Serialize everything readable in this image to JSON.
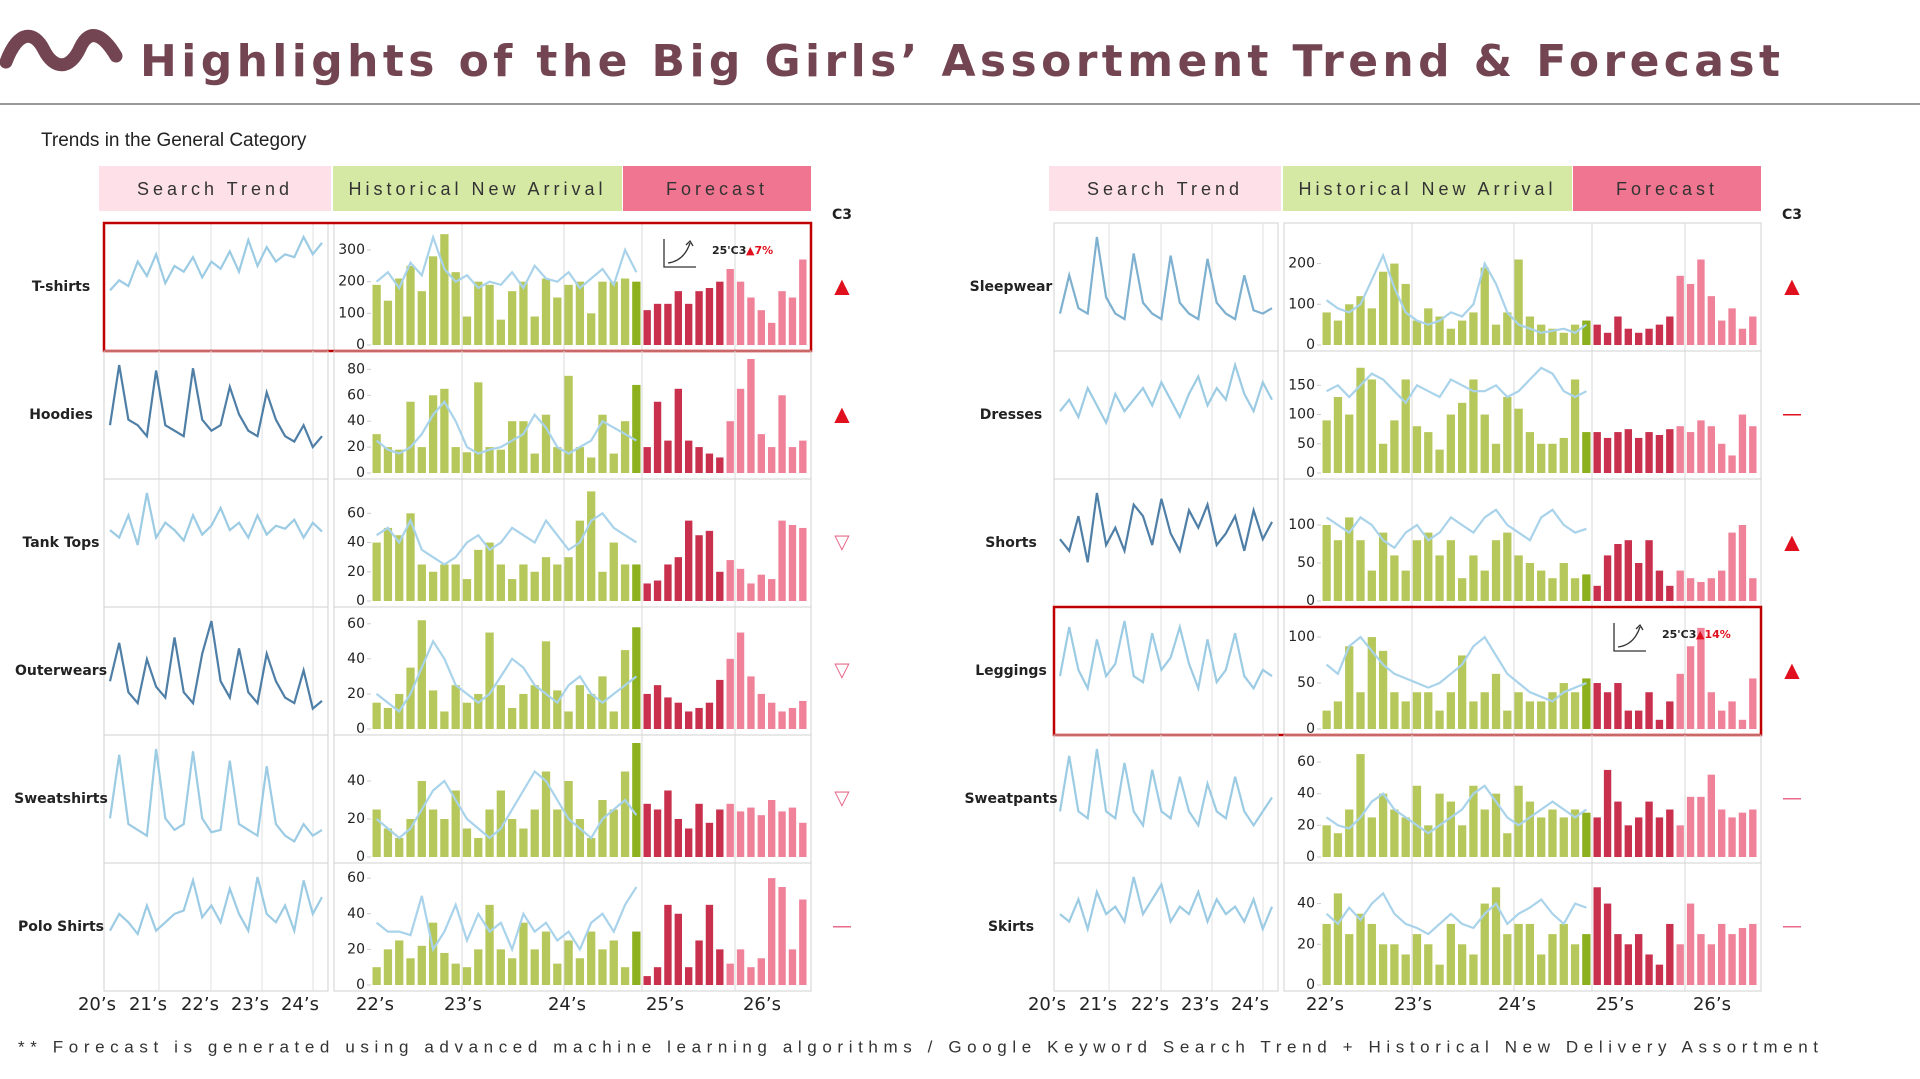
{
  "header": {
    "title": "Highlights of the Big Girls’ Assortment Trend & Forecast",
    "subtitle": "Trends in the General Category"
  },
  "column_headers": {
    "search": "Search Trend",
    "history": "Historical New Arrival",
    "forecast": "Forecast",
    "c3": "C3"
  },
  "x_labels": {
    "search": [
      "20’s",
      "21’s",
      "22’s",
      "23’s",
      "24’s"
    ],
    "history": [
      "22’s",
      "23’s",
      "24’s"
    ],
    "forecast": [
      "25’s",
      "26’s"
    ]
  },
  "footnote": "** Forecast is generated using advanced machine learning algorithms / Google Keyword Search Trend + Historical New Delivery Assortment",
  "colors": {
    "history": "#b6c85c",
    "history_latest": "#8db01e",
    "history_line": "#a9d3ea",
    "forecast_25": "#c8304d",
    "forecast_26": "#ef8199",
    "highlight": "#c00000"
  },
  "chart_data": [
    {
      "type": "panel",
      "title": "T-shirts",
      "search": {
        "color": "#9ccbe4",
        "values": [
          35,
          42,
          38,
          55,
          45,
          60,
          40,
          52,
          48,
          58,
          44,
          55,
          50,
          62,
          48,
          70,
          52,
          65,
          55,
          60,
          58,
          72,
          60,
          68
        ]
      },
      "ylim": [
        0,
        360
      ],
      "yticks": [
        0,
        100,
        200,
        300
      ],
      "history": [
        190,
        140,
        210,
        250,
        170,
        280,
        350,
        230,
        90,
        200,
        190,
        80,
        170,
        200,
        90,
        210,
        150,
        190,
        200,
        100,
        200,
        200,
        210,
        200
      ],
      "history_line": [
        200,
        230,
        180,
        260,
        220,
        340,
        240,
        200,
        220,
        180,
        200,
        190,
        230,
        180,
        250,
        210,
        200,
        230,
        180,
        210,
        240,
        190,
        300,
        230
      ],
      "forecast_25": [
        110,
        130,
        130,
        170,
        130,
        170,
        180,
        200
      ],
      "forecast_26": [
        240,
        200,
        150,
        110,
        70,
        170,
        150,
        270
      ],
      "c3": {
        "symbol": "▲",
        "color": "#e0101e"
      },
      "annotation": {
        "text": "25'C3",
        "change": "▲7%"
      },
      "highlight": true
    },
    {
      "type": "panel",
      "title": "Hoodies",
      "search": {
        "color": "#4f7fa6",
        "values": [
          40,
          95,
          45,
          40,
          30,
          90,
          40,
          35,
          30,
          92,
          45,
          35,
          40,
          75,
          50,
          35,
          30,
          70,
          45,
          30,
          25,
          40,
          20,
          30
        ]
      },
      "ylim": [
        0,
        88
      ],
      "yticks": [
        0,
        20,
        40,
        60,
        80
      ],
      "history": [
        30,
        20,
        18,
        55,
        20,
        60,
        65,
        20,
        16,
        70,
        20,
        18,
        40,
        40,
        15,
        45,
        20,
        75,
        20,
        12,
        45,
        15,
        40,
        68
      ],
      "history_line": [
        25,
        18,
        15,
        20,
        30,
        45,
        55,
        40,
        20,
        15,
        18,
        20,
        25,
        30,
        45,
        35,
        20,
        15,
        20,
        25,
        40,
        35,
        30,
        25
      ],
      "forecast_25": [
        20,
        55,
        25,
        65,
        25,
        20,
        15,
        12
      ],
      "forecast_26": [
        40,
        65,
        88,
        30,
        20,
        60,
        20,
        25
      ],
      "c3": {
        "symbol": "▲",
        "color": "#e0101e"
      }
    },
    {
      "type": "panel",
      "title": "Tank Tops",
      "search": {
        "color": "#9ccbe4",
        "values": [
          45,
          40,
          55,
          35,
          70,
          40,
          50,
          45,
          38,
          55,
          42,
          48,
          60,
          45,
          50,
          40,
          55,
          42,
          48,
          46,
          52,
          40,
          50,
          44
        ]
      },
      "ylim": [
        0,
        78
      ],
      "yticks": [
        0,
        20,
        40,
        60
      ],
      "history": [
        40,
        50,
        45,
        60,
        25,
        20,
        25,
        25,
        15,
        35,
        40,
        25,
        15,
        25,
        20,
        30,
        25,
        30,
        55,
        75,
        20,
        40,
        25,
        25
      ],
      "history_line": [
        45,
        50,
        40,
        55,
        35,
        30,
        25,
        30,
        40,
        45,
        35,
        40,
        50,
        45,
        40,
        55,
        45,
        35,
        40,
        55,
        60,
        50,
        45,
        40
      ],
      "forecast_25": [
        12,
        14,
        25,
        30,
        55,
        45,
        48,
        20
      ],
      "forecast_26": [
        28,
        22,
        12,
        18,
        15,
        55,
        52,
        50
      ],
      "c3": {
        "symbol": "▽",
        "color": "#e76b8a"
      }
    },
    {
      "type": "panel",
      "title": "Outerwears",
      "search": {
        "color": "#4f7fa6",
        "values": [
          40,
          75,
          30,
          20,
          60,
          35,
          25,
          80,
          30,
          20,
          65,
          95,
          40,
          25,
          70,
          30,
          20,
          65,
          40,
          25,
          20,
          50,
          15,
          22
        ]
      },
      "ylim": [
        0,
        65
      ],
      "yticks": [
        0,
        20,
        40,
        60
      ],
      "history": [
        15,
        12,
        20,
        35,
        62,
        22,
        10,
        25,
        15,
        20,
        55,
        25,
        12,
        20,
        25,
        50,
        22,
        10,
        25,
        20,
        30,
        10,
        45,
        58
      ],
      "history_line": [
        20,
        15,
        10,
        20,
        35,
        50,
        40,
        25,
        20,
        15,
        20,
        30,
        40,
        35,
        25,
        20,
        15,
        25,
        30,
        20,
        15,
        20,
        25,
        30
      ],
      "forecast_25": [
        20,
        25,
        18,
        15,
        10,
        12,
        15,
        28
      ],
      "forecast_26": [
        40,
        55,
        30,
        20,
        15,
        10,
        12,
        16
      ],
      "c3": {
        "symbol": "▽",
        "color": "#e76b8a"
      }
    },
    {
      "type": "panel",
      "title": "Sweatshirts",
      "search": {
        "color": "#9ccbe4",
        "values": [
          30,
          85,
          25,
          20,
          15,
          90,
          30,
          20,
          25,
          88,
          30,
          18,
          20,
          80,
          25,
          20,
          15,
          75,
          25,
          15,
          10,
          25,
          15,
          20
        ]
      },
      "ylim": [
        0,
        60
      ],
      "yticks": [
        0,
        20,
        40
      ],
      "history": [
        25,
        15,
        10,
        20,
        40,
        25,
        20,
        35,
        15,
        10,
        25,
        35,
        20,
        15,
        25,
        45,
        25,
        40,
        20,
        10,
        30,
        25,
        45,
        60
      ],
      "history_line": [
        20,
        15,
        10,
        15,
        25,
        35,
        40,
        30,
        20,
        15,
        10,
        15,
        25,
        35,
        45,
        40,
        30,
        20,
        15,
        10,
        20,
        25,
        30,
        22
      ],
      "forecast_25": [
        28,
        25,
        35,
        20,
        15,
        28,
        18,
        25
      ],
      "forecast_26": [
        28,
        24,
        26,
        22,
        30,
        24,
        26,
        18
      ],
      "c3": {
        "symbol": "▽",
        "color": "#e76b8a"
      }
    },
    {
      "type": "panel",
      "title": "Polo Shirts",
      "search": {
        "color": "#9ccbe4",
        "values": [
          30,
          40,
          35,
          28,
          45,
          30,
          35,
          40,
          42,
          60,
          38,
          45,
          35,
          55,
          40,
          30,
          62,
          40,
          35,
          45,
          30,
          60,
          40,
          50
        ]
      },
      "ylim": [
        0,
        64
      ],
      "yticks": [
        0,
        20,
        40,
        60
      ],
      "history": [
        10,
        20,
        25,
        15,
        22,
        35,
        18,
        12,
        10,
        20,
        45,
        20,
        15,
        35,
        20,
        30,
        12,
        25,
        15,
        30,
        20,
        25,
        10,
        30
      ],
      "history_line": [
        35,
        30,
        30,
        28,
        50,
        20,
        30,
        45,
        25,
        40,
        30,
        35,
        20,
        40,
        30,
        35,
        25,
        30,
        20,
        35,
        40,
        30,
        45,
        55
      ],
      "forecast_25": [
        5,
        10,
        45,
        40,
        10,
        25,
        45,
        20
      ],
      "forecast_26": [
        12,
        20,
        10,
        15,
        60,
        55,
        20,
        48
      ],
      "c3": {
        "symbol": "—",
        "color": "#e76b8a"
      }
    },
    {
      "type": "panel",
      "title": "Sleepwear",
      "search": {
        "color": "#7eb0d0",
        "values": [
          25,
          60,
          30,
          25,
          95,
          40,
          25,
          20,
          80,
          35,
          25,
          20,
          78,
          35,
          25,
          20,
          75,
          35,
          25,
          20,
          60,
          28,
          25,
          30
        ]
      },
      "ylim": [
        0,
        280
      ],
      "yticks": [
        0,
        100,
        200
      ],
      "history": [
        80,
        60,
        100,
        120,
        90,
        180,
        200,
        150,
        60,
        90,
        70,
        40,
        60,
        80,
        190,
        50,
        80,
        210,
        70,
        50,
        40,
        30,
        50,
        60
      ],
      "history_line": [
        110,
        90,
        80,
        100,
        160,
        220,
        140,
        80,
        60,
        50,
        60,
        80,
        70,
        100,
        200,
        150,
        80,
        50,
        40,
        30,
        35,
        40,
        30,
        50
      ],
      "forecast_25": [
        50,
        30,
        70,
        40,
        30,
        40,
        50,
        70
      ],
      "forecast_26": [
        170,
        150,
        210,
        120,
        60,
        90,
        40,
        70
      ],
      "c3": {
        "symbol": "▲",
        "color": "#e0101e"
      }
    },
    {
      "type": "panel",
      "title": "Dresses",
      "search": {
        "color": "#9ccbe4",
        "values": [
          50,
          60,
          45,
          70,
          55,
          40,
          65,
          50,
          60,
          70,
          55,
          75,
          60,
          45,
          65,
          80,
          55,
          70,
          60,
          90,
          65,
          50,
          75,
          60
        ]
      },
      "ylim": [
        0,
        195
      ],
      "yticks": [
        0,
        50,
        100,
        150
      ],
      "history": [
        90,
        130,
        100,
        180,
        160,
        50,
        90,
        160,
        80,
        70,
        40,
        100,
        120,
        160,
        100,
        50,
        130,
        110,
        70,
        50,
        50,
        60,
        160,
        70
      ],
      "history_line": [
        140,
        150,
        130,
        150,
        170,
        160,
        140,
        120,
        150,
        140,
        130,
        160,
        150,
        140,
        140,
        150,
        130,
        140,
        160,
        180,
        170,
        140,
        130,
        140
      ],
      "forecast_25": [
        70,
        60,
        70,
        75,
        60,
        70,
        65,
        75
      ],
      "forecast_26": [
        80,
        70,
        90,
        80,
        50,
        30,
        100,
        80
      ],
      "c3": {
        "symbol": "—",
        "color": "#e0101e"
      }
    },
    {
      "type": "panel",
      "title": "Shorts",
      "search": {
        "color": "#4f7fa6",
        "values": [
          50,
          40,
          70,
          30,
          90,
          45,
          60,
          40,
          80,
          70,
          45,
          85,
          55,
          40,
          75,
          60,
          80,
          45,
          55,
          70,
          40,
          75,
          50,
          65
        ]
      },
      "ylim": [
        0,
        150
      ],
      "yticks": [
        0,
        50,
        100
      ],
      "history": [
        100,
        80,
        110,
        80,
        40,
        90,
        60,
        40,
        80,
        90,
        60,
        80,
        30,
        60,
        40,
        80,
        90,
        60,
        50,
        40,
        30,
        50,
        30,
        35
      ],
      "history_line": [
        110,
        100,
        90,
        110,
        100,
        80,
        70,
        90,
        100,
        80,
        90,
        110,
        100,
        90,
        110,
        120,
        100,
        90,
        80,
        110,
        120,
        100,
        90,
        95
      ],
      "forecast_25": [
        20,
        60,
        75,
        80,
        50,
        80,
        40,
        20
      ],
      "forecast_26": [
        40,
        30,
        25,
        30,
        40,
        90,
        100,
        30
      ],
      "c3": {
        "symbol": "▲",
        "color": "#e0101e"
      }
    },
    {
      "type": "panel",
      "title": "Leggings",
      "search": {
        "color": "#9ccbe4",
        "values": [
          40,
          80,
          45,
          30,
          70,
          40,
          50,
          85,
          40,
          35,
          75,
          45,
          55,
          80,
          50,
          30,
          70,
          35,
          45,
          75,
          40,
          30,
          45,
          40
        ]
      },
      "ylim": [
        0,
        124
      ],
      "yticks": [
        0,
        50,
        100
      ],
      "history": [
        20,
        30,
        90,
        40,
        100,
        85,
        40,
        30,
        40,
        40,
        20,
        40,
        80,
        30,
        40,
        60,
        20,
        40,
        30,
        30,
        40,
        50,
        40,
        55
      ],
      "history_line": [
        70,
        60,
        90,
        100,
        85,
        70,
        60,
        55,
        50,
        45,
        50,
        60,
        70,
        90,
        100,
        80,
        60,
        50,
        40,
        35,
        30,
        40,
        45,
        50
      ],
      "forecast_25": [
        50,
        40,
        50,
        20,
        20,
        40,
        10,
        30
      ],
      "forecast_26": [
        60,
        90,
        110,
        40,
        20,
        30,
        10,
        55
      ],
      "c3": {
        "symbol": "▲",
        "color": "#e0101e"
      },
      "annotation": {
        "text": "25'C3",
        "change": "▲14%"
      },
      "highlight": true
    },
    {
      "type": "panel",
      "title": "Sweatpants",
      "search": {
        "color": "#9ccbe4",
        "values": [
          30,
          70,
          30,
          25,
          75,
          30,
          25,
          65,
          30,
          20,
          60,
          30,
          25,
          55,
          30,
          20,
          50,
          30,
          25,
          55,
          30,
          20,
          30,
          40
        ]
      },
      "ylim": [
        0,
        72
      ],
      "yticks": [
        0,
        20,
        40,
        60
      ],
      "history": [
        20,
        15,
        30,
        65,
        25,
        40,
        30,
        25,
        45,
        20,
        40,
        35,
        20,
        45,
        30,
        40,
        15,
        45,
        35,
        25,
        30,
        25,
        30,
        28
      ],
      "history_line": [
        25,
        20,
        18,
        25,
        35,
        40,
        30,
        25,
        20,
        15,
        20,
        25,
        30,
        40,
        45,
        35,
        25,
        20,
        25,
        30,
        35,
        30,
        25,
        30
      ],
      "forecast_25": [
        25,
        55,
        35,
        20,
        25,
        35,
        25,
        30
      ],
      "forecast_26": [
        20,
        38,
        38,
        52,
        30,
        25,
        28,
        30
      ],
      "c3": {
        "symbol": "—",
        "color": "#e76b8a"
      }
    },
    {
      "type": "panel",
      "title": "Skirts",
      "search": {
        "color": "#9ccbe4",
        "values": [
          45,
          40,
          55,
          35,
          60,
          45,
          50,
          40,
          70,
          45,
          55,
          65,
          40,
          50,
          45,
          60,
          40,
          55,
          45,
          50,
          40,
          55,
          35,
          50
        ]
      },
      "ylim": [
        0,
        56
      ],
      "yticks": [
        0,
        20,
        40
      ],
      "history": [
        30,
        45,
        25,
        35,
        30,
        20,
        20,
        15,
        25,
        20,
        10,
        30,
        20,
        15,
        40,
        48,
        25,
        30,
        30,
        15,
        25,
        30,
        20,
        25
      ],
      "history_line": [
        35,
        30,
        38,
        32,
        40,
        45,
        35,
        30,
        28,
        25,
        30,
        35,
        30,
        28,
        35,
        40,
        30,
        35,
        38,
        42,
        35,
        30,
        40,
        38
      ],
      "forecast_25": [
        48,
        40,
        25,
        20,
        25,
        15,
        10,
        30
      ],
      "forecast_26": [
        20,
        40,
        25,
        20,
        30,
        25,
        28,
        30
      ],
      "c3": {
        "symbol": "—",
        "color": "#e76b8a"
      }
    }
  ]
}
